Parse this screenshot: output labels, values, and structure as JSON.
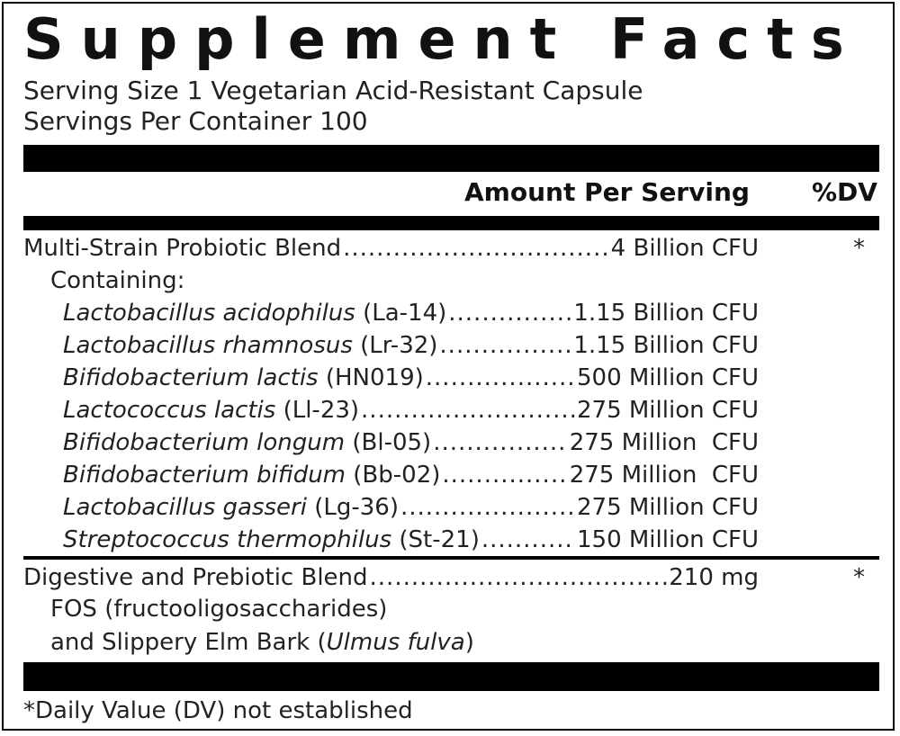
{
  "title": "Supplement Facts",
  "serving_size": "Serving Size 1 Vegetarian Acid-Resistant Capsule",
  "servings_per_container": "Servings Per Container 100",
  "header": {
    "amount": "Amount Per Serving",
    "dv": "%DV"
  },
  "blend1": {
    "name": "Multi-Strain Probiotic Blend",
    "amount": "4 Billion CFU",
    "dv": "*",
    "containing_label": "Containing:",
    "strains": [
      {
        "species": "Lactobacillus acidophilus",
        "strain": "(La-14)",
        "amount": "1.15 Billion CFU"
      },
      {
        "species": "Lactobacillus rhamnosus",
        "strain": "(Lr-32)",
        "amount": "1.15 Billion CFU"
      },
      {
        "species": "Bifidobacterium lactis",
        "strain": "(HN019)",
        "amount": "500 Million CFU"
      },
      {
        "species": "Lactococcus lactis",
        "strain": "(Ll-23)",
        "amount": "275 Million CFU"
      },
      {
        "species": "Bifidobacterium longum",
        "strain": "(Bl-05)",
        "amount": "275 Million  CFU"
      },
      {
        "species": "Bifidobacterium bifidum",
        "strain": "(Bb-02)",
        "amount": "275 Million  CFU"
      },
      {
        "species": "Lactobacillus gasseri",
        "strain": "(Lg-36)",
        "amount": "275 Million CFU"
      },
      {
        "species": "Streptococcus thermophilus",
        "strain": "(St-21)",
        "amount": "150 Million CFU"
      }
    ]
  },
  "blend2": {
    "name": "Digestive and Prebiotic Blend",
    "amount": "210 mg",
    "dv": "*",
    "line2": "FOS (fructooligosaccharides)",
    "line3_prefix": "and Slippery Elm Bark (",
    "line3_italic": "Ulmus fulva",
    "line3_suffix": ")"
  },
  "footnote": "*Daily Value (DV) not established"
}
